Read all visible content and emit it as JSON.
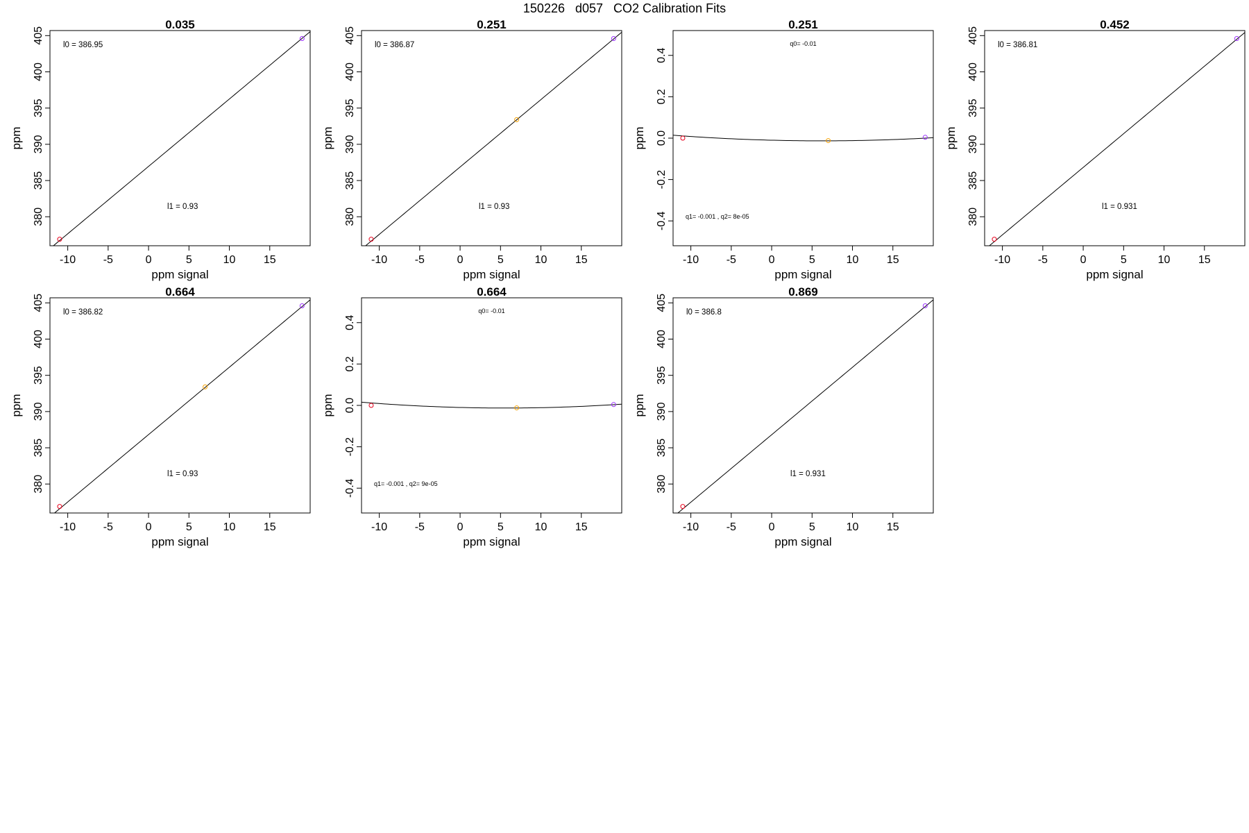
{
  "page": {
    "title": "150226   d057   CO2 Calibration Fits"
  },
  "colors": {
    "axis": "#000000",
    "fit_line": "#000000",
    "point_low": "#e8001c",
    "point_mid": "#f5a000",
    "point_high": "#9b30ff"
  },
  "chart_data": [
    {
      "type": "line",
      "title": "0.035",
      "xlabel": "ppm signal",
      "ylabel": "ppm",
      "xlim": [
        -12.2,
        20
      ],
      "ylim": [
        376,
        405.7
      ],
      "xticks": [
        -10,
        -5,
        0,
        5,
        10,
        15
      ],
      "yticks": [
        380,
        385,
        390,
        395,
        400,
        405
      ],
      "grid": false,
      "fit": {
        "kind": "linear",
        "intercept": 386.95,
        "slope": 0.93
      },
      "points": [
        {
          "x": -11,
          "y": 376.9,
          "color": "red"
        },
        {
          "x": 19,
          "y": 404.6,
          "color": "purple"
        }
      ],
      "annotations": [
        {
          "text": "l0 =  386.95",
          "position": "top-left"
        },
        {
          "text": "l1 =  0.93",
          "position": "lower-center"
        }
      ]
    },
    {
      "type": "line",
      "title": "0.251",
      "xlabel": "ppm signal",
      "ylabel": "ppm",
      "xlim": [
        -12.2,
        20
      ],
      "ylim": [
        376,
        405.7
      ],
      "xticks": [
        -10,
        -5,
        0,
        5,
        10,
        15
      ],
      "yticks": [
        380,
        385,
        390,
        395,
        400,
        405
      ],
      "grid": false,
      "fit": {
        "kind": "linear",
        "intercept": 386.87,
        "slope": 0.93
      },
      "points": [
        {
          "x": -11,
          "y": 376.9,
          "color": "red"
        },
        {
          "x": 7,
          "y": 393.4,
          "color": "orange"
        },
        {
          "x": 19,
          "y": 404.6,
          "color": "purple"
        }
      ],
      "annotations": [
        {
          "text": "l0 =  386.87",
          "position": "top-left"
        },
        {
          "text": "l1 =  0.93",
          "position": "lower-center"
        }
      ]
    },
    {
      "type": "line",
      "title": "0.251",
      "xlabel": "ppm signal",
      "ylabel": "ppm",
      "xlim": [
        -12.2,
        20
      ],
      "ylim": [
        -0.52,
        0.52
      ],
      "xticks": [
        -10,
        -5,
        0,
        5,
        10,
        15
      ],
      "yticks": [
        -0.4,
        -0.2,
        0.0,
        0.2,
        0.4
      ],
      "ytick_labels": [
        "-0.4",
        "-0.2",
        "0.0",
        "0.2",
        "0.4"
      ],
      "grid": false,
      "fit": {
        "kind": "quadratic",
        "q0": -0.01,
        "q1": -0.001,
        "q2": 8e-05
      },
      "points": [
        {
          "x": -11,
          "y": 0.0,
          "color": "red"
        },
        {
          "x": 7,
          "y": -0.012,
          "color": "orange"
        },
        {
          "x": 19,
          "y": 0.004,
          "color": "purple"
        }
      ],
      "annotations": [
        {
          "text": "q0= -0.01",
          "position": "top-center"
        },
        {
          "text": "q1= -0.001 , q2= 8e-05",
          "position": "lower-left"
        }
      ]
    },
    {
      "type": "line",
      "title": "0.452",
      "xlabel": "ppm signal",
      "ylabel": "ppm",
      "xlim": [
        -12.2,
        20
      ],
      "ylim": [
        376,
        405.7
      ],
      "xticks": [
        -10,
        -5,
        0,
        5,
        10,
        15
      ],
      "yticks": [
        380,
        385,
        390,
        395,
        400,
        405
      ],
      "grid": false,
      "fit": {
        "kind": "linear",
        "intercept": 386.81,
        "slope": 0.931
      },
      "points": [
        {
          "x": -11,
          "y": 376.9,
          "color": "red"
        },
        {
          "x": 19,
          "y": 404.6,
          "color": "purple"
        }
      ],
      "annotations": [
        {
          "text": "l0 =  386.81",
          "position": "top-left"
        },
        {
          "text": "l1 =  0.931",
          "position": "lower-center"
        }
      ]
    },
    {
      "type": "line",
      "title": "0.664",
      "xlabel": "ppm signal",
      "ylabel": "ppm",
      "xlim": [
        -12.2,
        20
      ],
      "ylim": [
        376,
        405.7
      ],
      "xticks": [
        -10,
        -5,
        0,
        5,
        10,
        15
      ],
      "yticks": [
        380,
        385,
        390,
        395,
        400,
        405
      ],
      "grid": false,
      "fit": {
        "kind": "linear",
        "intercept": 386.82,
        "slope": 0.93
      },
      "points": [
        {
          "x": -11,
          "y": 376.9,
          "color": "red"
        },
        {
          "x": 7,
          "y": 393.4,
          "color": "orange"
        },
        {
          "x": 19,
          "y": 404.6,
          "color": "purple"
        }
      ],
      "annotations": [
        {
          "text": "l0 =  386.82",
          "position": "top-left"
        },
        {
          "text": "l1 =  0.93",
          "position": "lower-center"
        }
      ]
    },
    {
      "type": "line",
      "title": "0.664",
      "xlabel": "ppm signal",
      "ylabel": "ppm",
      "xlim": [
        -12.2,
        20
      ],
      "ylim": [
        -0.52,
        0.52
      ],
      "xticks": [
        -10,
        -5,
        0,
        5,
        10,
        15
      ],
      "yticks": [
        -0.4,
        -0.2,
        0.0,
        0.2,
        0.4
      ],
      "ytick_labels": [
        "-0.4",
        "-0.2",
        "0.0",
        "0.2",
        "0.4"
      ],
      "grid": false,
      "fit": {
        "kind": "quadratic",
        "q0": -0.01,
        "q1": -0.001,
        "q2": 9e-05
      },
      "points": [
        {
          "x": -11,
          "y": 0.0,
          "color": "red"
        },
        {
          "x": 7,
          "y": -0.012,
          "color": "orange"
        },
        {
          "x": 19,
          "y": 0.004,
          "color": "purple"
        }
      ],
      "annotations": [
        {
          "text": "q0= -0.01",
          "position": "top-center"
        },
        {
          "text": "q1= -0.001 , q2= 9e-05",
          "position": "lower-left"
        }
      ]
    },
    {
      "type": "line",
      "title": "0.869",
      "xlabel": "ppm signal",
      "ylabel": "ppm",
      "xlim": [
        -12.2,
        20
      ],
      "ylim": [
        376,
        405.7
      ],
      "xticks": [
        -10,
        -5,
        0,
        5,
        10,
        15
      ],
      "yticks": [
        380,
        385,
        390,
        395,
        400,
        405
      ],
      "grid": false,
      "fit": {
        "kind": "linear",
        "intercept": 386.8,
        "slope": 0.931
      },
      "points": [
        {
          "x": -11,
          "y": 376.9,
          "color": "red"
        },
        {
          "x": 19,
          "y": 404.6,
          "color": "purple"
        }
      ],
      "annotations": [
        {
          "text": "l0 =  386.8",
          "position": "top-left"
        },
        {
          "text": "l1 =  0.931",
          "position": "lower-center"
        }
      ]
    }
  ]
}
